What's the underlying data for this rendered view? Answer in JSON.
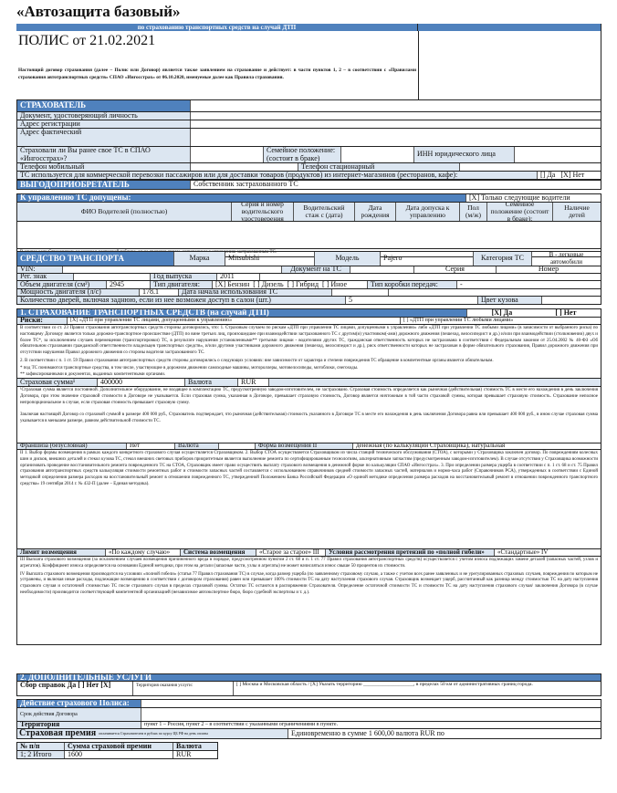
{
  "title": "«Автозащита базовый»",
  "subtitle": "по страхованию транспортных средств на случай ДТП",
  "policy_title": "ПОЛИС от 21.02.2021",
  "intro": "Настоящий договор страхования (далее – Полис или Договор) является также заявлением на страхование и действует: в части пунктов 1, 2 – в соответствии с «Правилами страхования автотранспортных средств» СПАО «Ингосстрах» от 06.10.2020, именуемые далее как Правила страхования.",
  "insurer": {
    "header": "СТРАХОВАТЕЛЬ",
    "doc": "Документ, удостоверяющий личность",
    "reg_address": "Адрес регистрации",
    "fact_address": "Адрес фактический",
    "insured_before": "Страховали ли Вы ранее свое ТС в СПАО «Ингосстрах»?",
    "marital": "Семейное положение: (состоит в браке)",
    "inn": "ИНН юридического лица",
    "phone_mobile": "Телефон мобильный",
    "phone_landline": "Телефон стационарный",
    "commercial": "ТС используется для коммерческой перевозки пассажиров или для доставки товаров (продуктов) из интернет-магазинов (ресторанов, кафе):",
    "commercial_yes": "[] Да",
    "commercial_no": "[X] Нет"
  },
  "beneficiary": {
    "label": "ВЫГОДОПРИОБРЕТАТЕЛЬ",
    "value": "Собственник застрахованного ТС"
  },
  "drivers": {
    "header": "К управлению ТС допущены:",
    "option": "[X] Только следующие водители",
    "columns": [
      "ФИО Водителей (полностью)",
      "Серия и номер водительского удостоверения",
      "Водительский стаж с (дата)",
      "Дата рождения",
      "Дата допуска к управлению",
      "Пол (м/ж)",
      "Семейное положение (состоит в браке):",
      "Наличие детей"
    ],
    "note": "В случае если Страхователь не указан в настоящей таблице, он не является лицом, допущенным к управлению застрахованным ТС."
  },
  "vehicle": {
    "header": "СРЕДСТВО ТРАНСПОРТА",
    "make_label": "Марка",
    "make": "Mitsubishi",
    "model_label": "Модель",
    "model": "Pajero",
    "category_label": "Категория ТС",
    "category": "B - легковые автомобили",
    "vin": "VIN:",
    "doc": "Документ на ТС",
    "series": "Серия",
    "number": "Номер",
    "plate": "Рег. знак",
    "year_label": "Год выпуска",
    "year": "2011",
    "volume_label": "Объем двигателя (см³)",
    "volume": "2945",
    "engine_label": "Тип двигателя:",
    "engine": "[X] Бензин  [ ] Дизель  [ ] Гибрид  [ ] Иное",
    "gearbox_label": "Тип коробки передач:",
    "gearbox": "-",
    "power_label": "Мощность двигателя (л/с)",
    "power": "178.1",
    "start_label": "Дата начала использования ТС",
    "doors_label": "Количество дверей, включая заднюю, если из нее возможен доступ в салон (шт.)",
    "doors": "5",
    "color_label": "Цвет кузова"
  },
  "section1": {
    "header": "1. СТРАХОВАНИЕ ТРАНСПОРТНЫХ СРЕДСТВ (на случай ДТП)",
    "yes": "[X] Да",
    "no": "[ ] Нет",
    "risks_label": "Риски:",
    "risk1": "[X]   «ДТП при управлении ТС лицами, допущенными к управлению»",
    "risk2": "[ ]   «ДТП при управлении ТС любыми лицами»",
    "terms": "В соответствии со ст. 23 Правил страхования автотранспортных средств стороны договорились, что: 1. Страховым случаем по рискам «ДТП при управлении ТС лицами, допущенными к управлению» либо «ДТП при управлении ТС любыми лицами» (в зависимости от выбранного риска) по настоящему Договору является только дорожно-транспортное происшествие (ДТП) по вине третьих лиц, произошедшее при взаимодействии застрахованного ТС с другим(и) участником(-ами) дорожного движения (пешеход, велосипедист и др.) и/или при взаимодействии (столкновении) двух и более ТС*, за исключением случаев перемещения (транспортировки) ТС, в результате нарушения установленными** третьими лицами - водителями других ТС, гражданская ответственность которых не застрахована в соответствии с Федеральным законом от 25.04.2002 № 40-ФЗ «Об обязательном страховании гражданской ответственности владельцев транспортных средств», и/или другими участниками дорожного движения (пешеход, велосипедист и др.), риск ответственности которых не застрахован в форме обязательного страхования, Правил дорожного движения при отсутствии нарушения Правил дорожного движения со стороны водителя застрахованного ТС.",
    "terms2": "2. В соответствии с п. 1 ст. 59 Правил страхования автотранспортных средств стороны договорились о следующих условиях: вне зависимости от характера и степени повреждения ТС обращение в компетентные органы является обязательным.",
    "fn1": "* под ТС понимаются транспортные средства, в том числе, участвующие в дорожном движении самоходные машины, мотороллеры, мотовелосипеды, мотоблоки, снегоходы.",
    "fn2": "** зафиксированными в документах, выданных компетентными органами.",
    "sum_label": "Страховая сумма¹",
    "sum": "400000",
    "currency_label": "Валюта",
    "currency": "RUR",
    "sum_notes": "¹Страховая сумма является постоянной. Дополнительное оборудование, не входящее в комплектацию ТС, предусмотренную заводом-изготовителем, не застраховано. Страховая стоимость определяется как рыночная (действительная) стоимость ТС в месте его нахождения в день заключения Договора, при этом значение страховой стоимости в Договоре не указывается. Если страховая сумма, указанная в Договоре, превышает страховую стоимость, Договор является ничтожным в той части страховой суммы, которая превышает страховую стоимость. Страхование неполное непропорциональное в случае, если страховая стоимость превышает страховую сумму.",
    "sum_notes2": "Заключая настоящий Договор со страховой суммой в размере 400 000 руб., Страхователь подтверждает, что рыночная (действительная) стоимость указанного в Договоре ТС в месте его нахождения в день заключения Договора равна или превышает 400 000 руб., в ином случае страховая сумма указывается в меньшем размере, равном действительной стоимости ТС.",
    "deductible_label": "Франшиза (безусловная)",
    "deductible": "Нет",
    "deductible_currency_label": "Валюта",
    "form_label": "Форма возмещения II",
    "form": "денежная (по калькуляции Страховщика), натуральная",
    "form_notes": "II 1. Выбор формы возмещения в рамках каждого конкретного страхового случая осуществляется Страховщиком. 2. Выбор СТОА осуществляется Страховщиком из числа станций технического обслуживания (СТОА), с которыми у Страховщика заключен договор. По повреждениям колесных шин и дисков, внешних деталей и стекол кузова ТС, стекол внешних световых приборов приоритетным является выполнение ремонта по сертифицированным технологиям, альтернативным запчастям (предусмотренным заводом-изготовителем). В случае отсутствия у Страховщика возможности организовать проведение восстановительного ремонта поврежденного ТС на СТОА, Страховщик имеет право осуществить выплату страхового возмещения в денежной форме по калькуляции СПАО «Ингосстрах». 3. При определении размера ущерба в соответствии с п. 1 ст. 68 и ст. 75 Правил страхования автотранспортных средств калькуляция стоимости ремонтных работ и стоимости запасных частей составляется с использованием справочников средней стоимости запасных частей, материалов и нормо-часа работ (Справочников РСА), утвержденных в соответствии с Единой методикой определения размера расходов на восстановительный ремонт в отношении поврежденного ТС, утвержденной Положением Банка Российской Федерации «О единой методике определения размера расходов на восстановительный ремонт в отношении поврежденного транспортного средства» 19 сентября 2014 г. № 432-П (далее – Единая методика).",
    "limit_label": "Лимит возмещения",
    "limit": "«По каждому случаю»",
    "system_label": "Система возмещения",
    "system": "«Старое за старое» III",
    "total_loss_label": "Условия рассмотрения претензий по «полной гибели»",
    "total_loss": "«Стандартные» IV",
    "limit_notes": "III Выплата страхового возмещения (за исключением случаев возмещения причиненного вреда в порядке, предусмотренном пунктом 2 ст. 68 и п. 1 ст. 77 Правил страхования автотранспортных средств) осуществляется с учетом износа подлежащих замене деталей (запасных частей, узлов и агрегатов). Коэффициент износа определяется на основании Единой методики, при этом на детали (запасные части, узлы и агрегаты) не может начисляться износ свыше 50 процентов их стоимости.",
    "limit_notes2": "IV Выплата страхового возмещения производится на условиях «полной гибели» (статья 77 Правил страхования ТС) в случае, когда размер ущерба (по заявленному страховому случаю, а также с учетом всех ранее заявленных и не урегулированных страховых случаев, повреждения по которым не устранены, и включая иные расходы, подлежащие возмещению в соответствии с договором страхования) равен или превышает 100% стоимости ТС на дату наступления страхового случая. Страховщик возмещает ущерб, рассчитанный как разница между стоимостью ТС на дату наступления страхового случая и остаточной стоимостью ТС после страхового случая в пределах страховой суммы. Остатки ТС остаются в распоряжении Страхователя. Определение остаточной стоимости ТС и стоимости ТС на дату наступления страхового случая/ заключения Договора (в случае необходимости) производится соответствующей компетентной организацией (независимое автоэкспертное бюро, бюро судебной экспертизы и т. д.)."
  },
  "section2": {
    "header": "2. ДОПОЛНИТЕЛЬНЫЕ УСЛУГИ",
    "certs": "Сбор справок  Да [ ]  Нет [X]",
    "territory_label": "Территория оказания услуги:",
    "territory": "[ ] Москва и Московская область / [X] Указать территорию ____________________, в пределах 50 км от административных границ города."
  },
  "validity": {
    "header": "Действие страхового Полиса:",
    "term_label": "Срок действия Договора",
    "territory_label": "Территория",
    "territory": "пункт 1 – Россия, пункт 2 – в соответствии с указанными ограничениями в пункте.",
    "premium_label": "Страховая премия",
    "premium_note": "оплачивается Страхователем в рублях по курсу ЦБ РФ на день оплаты",
    "premium": "Единовременно в сумме 1 600,00 валюта RUR по"
  },
  "premium_table": {
    "columns": [
      "№ п/п",
      "Сумма страховой премии",
      "Валюта"
    ],
    "rows": [
      [
        "1; 2 Итого",
        "1600",
        "RUR"
      ]
    ]
  },
  "colors": {
    "header_blue": "#4f81bd",
    "label_blue": "#dce6f1"
  }
}
